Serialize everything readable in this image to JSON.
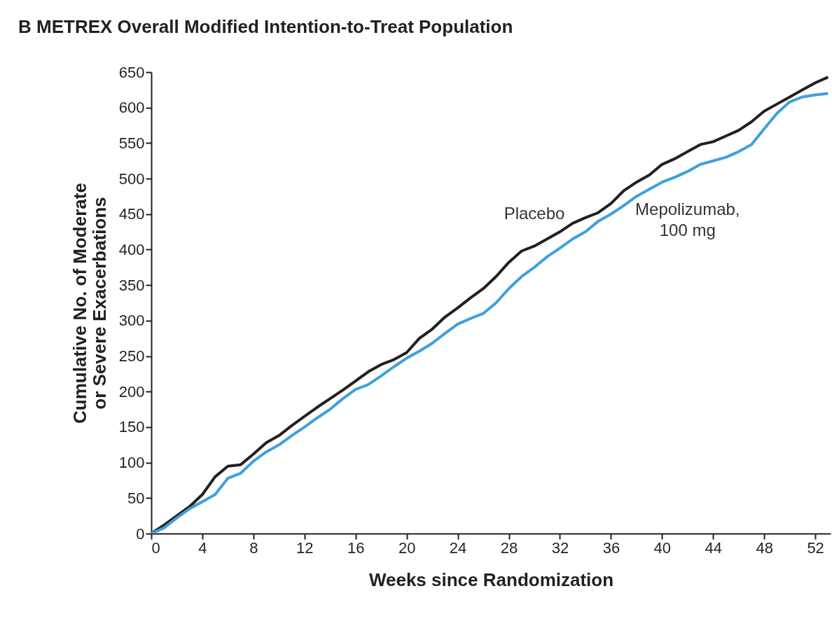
{
  "chart_data": {
    "type": "line",
    "title": "B  METREX Overall Modified Intention-to-Treat Population",
    "xlabel": "Weeks since Randomization",
    "ylabel": "Cumulative No. of Moderate or Severe Exacerbations",
    "xlim": [
      0,
      53.2
    ],
    "xticks": [
      0,
      4,
      8,
      12,
      16,
      20,
      24,
      28,
      32,
      36,
      40,
      44,
      48,
      52
    ],
    "ylim": [
      0,
      650
    ],
    "yticks": [
      0,
      50,
      100,
      150,
      200,
      250,
      300,
      350,
      400,
      450,
      500,
      550,
      600,
      650
    ],
    "x": [
      0,
      1,
      2,
      3,
      4,
      5,
      6,
      7,
      8,
      9,
      10,
      11,
      12,
      13,
      14,
      15,
      16,
      17,
      18,
      19,
      20,
      21,
      22,
      23,
      24,
      25,
      26,
      27,
      28,
      29,
      30,
      31,
      32,
      33,
      34,
      35,
      36,
      37,
      38,
      39,
      40,
      41,
      42,
      43,
      44,
      45,
      46,
      47,
      48,
      49,
      50,
      51,
      52,
      53
    ],
    "grid": false,
    "legend": false,
    "line_style": "solid",
    "marker": "none",
    "series": [
      {
        "name": "Placebo",
        "color": "#231f20",
        "values": [
          0,
          12,
          25,
          38,
          55,
          80,
          95,
          97,
          112,
          128,
          138,
          152,
          165,
          178,
          190,
          202,
          215,
          228,
          238,
          245,
          255,
          275,
          288,
          305,
          318,
          332,
          345,
          362,
          382,
          398,
          405,
          415,
          425,
          437,
          445,
          452,
          465,
          483,
          495,
          505,
          520,
          528,
          538,
          548,
          552,
          560,
          568,
          580,
          595,
          605,
          615,
          625,
          635,
          643
        ]
      },
      {
        "name": "Mepolizumab, 100 mg",
        "color": "#3fa0dc",
        "values": [
          0,
          8,
          22,
          35,
          45,
          55,
          78,
          85,
          102,
          115,
          125,
          138,
          150,
          163,
          175,
          190,
          203,
          210,
          222,
          235,
          247,
          257,
          268,
          282,
          295,
          303,
          310,
          325,
          345,
          362,
          375,
          390,
          402,
          415,
          425,
          440,
          450,
          462,
          475,
          485,
          495,
          502,
          510,
          520,
          525,
          530,
          538,
          548,
          570,
          592,
          608,
          615,
          618,
          620
        ]
      }
    ]
  }
}
